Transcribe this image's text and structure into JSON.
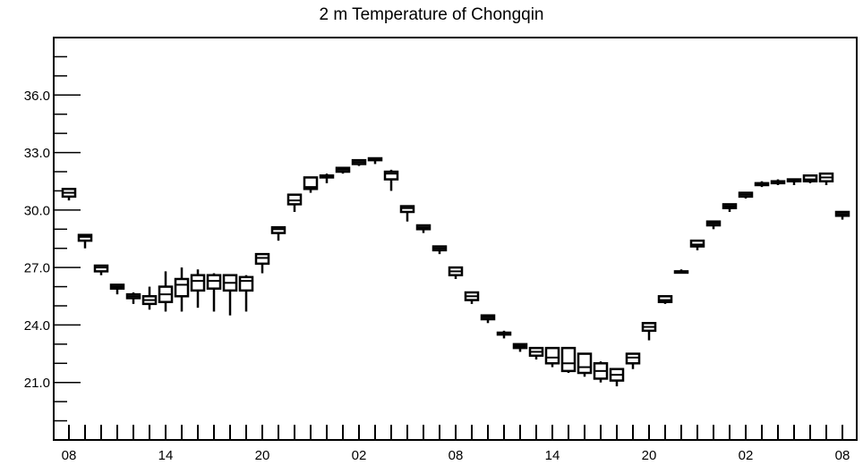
{
  "chart_data": {
    "type": "boxplot",
    "title": "2 m Temperature of Chongqin",
    "xlabel": "",
    "ylabel": "",
    "ylim": [
      18.0,
      39.0
    ],
    "yticks": [
      21.0,
      24.0,
      27.0,
      30.0,
      33.0,
      36.0
    ],
    "ytick_labels": [
      "21.0",
      "24.0",
      "27.0",
      "30.0",
      "33.0",
      "36.0"
    ],
    "xlim": [
      0,
      48
    ],
    "xtick_labels": [
      {
        "x": 0,
        "label": "08"
      },
      {
        "x": 6,
        "label": "14"
      },
      {
        "x": 12,
        "label": "20"
      },
      {
        "x": 18,
        "label": "02"
      },
      {
        "x": 24,
        "label": "08"
      },
      {
        "x": 30,
        "label": "14"
      },
      {
        "x": 36,
        "label": "20"
      },
      {
        "x": 42,
        "label": "02"
      },
      {
        "x": 48,
        "label": "08"
      }
    ],
    "grid": false,
    "boxes": [
      {
        "x": 0,
        "min": 30.5,
        "q1": 30.7,
        "median": 30.9,
        "q3": 31.1,
        "max": 31.1
      },
      {
        "x": 1,
        "min": 28.0,
        "q1": 28.4,
        "median": 28.6,
        "q3": 28.7,
        "max": 28.7
      },
      {
        "x": 2,
        "min": 26.6,
        "q1": 26.8,
        "median": 27.0,
        "q3": 27.1,
        "max": 27.1
      },
      {
        "x": 3,
        "min": 25.6,
        "q1": 25.9,
        "median": 26.0,
        "q3": 26.1,
        "max": 26.1
      },
      {
        "x": 4,
        "min": 25.1,
        "q1": 25.4,
        "median": 25.5,
        "q3": 25.6,
        "max": 25.7
      },
      {
        "x": 5,
        "min": 24.8,
        "q1": 25.1,
        "median": 25.3,
        "q3": 25.5,
        "max": 26.0
      },
      {
        "x": 6,
        "min": 24.7,
        "q1": 25.2,
        "median": 25.6,
        "q3": 26.0,
        "max": 26.8
      },
      {
        "x": 7,
        "min": 24.7,
        "q1": 25.5,
        "median": 26.1,
        "q3": 26.4,
        "max": 27.0
      },
      {
        "x": 8,
        "min": 24.9,
        "q1": 25.8,
        "median": 26.3,
        "q3": 26.6,
        "max": 26.9
      },
      {
        "x": 9,
        "min": 24.7,
        "q1": 25.9,
        "median": 26.3,
        "q3": 26.6,
        "max": 26.7
      },
      {
        "x": 10,
        "min": 24.5,
        "q1": 25.8,
        "median": 26.2,
        "q3": 26.6,
        "max": 26.6
      },
      {
        "x": 11,
        "min": 24.7,
        "q1": 25.8,
        "median": 26.3,
        "q3": 26.5,
        "max": 26.6
      },
      {
        "x": 12,
        "min": 26.7,
        "q1": 27.2,
        "median": 27.5,
        "q3": 27.7,
        "max": 27.7
      },
      {
        "x": 13,
        "min": 28.4,
        "q1": 28.8,
        "median": 29.0,
        "q3": 29.1,
        "max": 29.1
      },
      {
        "x": 14,
        "min": 29.9,
        "q1": 30.3,
        "median": 30.5,
        "q3": 30.8,
        "max": 30.8
      },
      {
        "x": 15,
        "min": 30.9,
        "q1": 31.1,
        "median": 31.2,
        "q3": 31.7,
        "max": 31.7
      },
      {
        "x": 16,
        "min": 31.4,
        "q1": 31.7,
        "median": 31.8,
        "q3": 31.8,
        "max": 31.9
      },
      {
        "x": 17,
        "min": 31.9,
        "q1": 32.0,
        "median": 32.1,
        "q3": 32.2,
        "max": 32.2
      },
      {
        "x": 18,
        "min": 32.3,
        "q1": 32.4,
        "median": 32.5,
        "q3": 32.6,
        "max": 32.6
      },
      {
        "x": 19,
        "min": 32.4,
        "q1": 32.6,
        "median": 32.7,
        "q3": 32.7,
        "max": 32.7
      },
      {
        "x": 20,
        "min": 31.0,
        "q1": 31.6,
        "median": 31.9,
        "q3": 32.0,
        "max": 32.1
      },
      {
        "x": 21,
        "min": 29.4,
        "q1": 29.9,
        "median": 30.1,
        "q3": 30.2,
        "max": 30.2
      },
      {
        "x": 22,
        "min": 28.8,
        "q1": 29.0,
        "median": 29.1,
        "q3": 29.2,
        "max": 29.2
      },
      {
        "x": 23,
        "min": 27.7,
        "q1": 27.9,
        "median": 28.0,
        "q3": 28.1,
        "max": 28.1
      },
      {
        "x": 24,
        "min": 26.4,
        "q1": 26.6,
        "median": 26.8,
        "q3": 27.0,
        "max": 27.0
      },
      {
        "x": 25,
        "min": 25.1,
        "q1": 25.3,
        "median": 25.5,
        "q3": 25.7,
        "max": 25.7
      },
      {
        "x": 26,
        "min": 24.1,
        "q1": 24.3,
        "median": 24.4,
        "q3": 24.5,
        "max": 24.5
      },
      {
        "x": 27,
        "min": 23.3,
        "q1": 23.5,
        "median": 23.6,
        "q3": 23.6,
        "max": 23.7
      },
      {
        "x": 28,
        "min": 22.6,
        "q1": 22.8,
        "median": 22.9,
        "q3": 23.0,
        "max": 23.0
      },
      {
        "x": 29,
        "min": 22.2,
        "q1": 22.4,
        "median": 22.6,
        "q3": 22.8,
        "max": 22.8
      },
      {
        "x": 30,
        "min": 21.8,
        "q1": 22.0,
        "median": 22.3,
        "q3": 22.8,
        "max": 22.8
      },
      {
        "x": 31,
        "min": 21.5,
        "q1": 21.6,
        "median": 22.0,
        "q3": 22.8,
        "max": 22.8
      },
      {
        "x": 32,
        "min": 21.3,
        "q1": 21.5,
        "median": 21.8,
        "q3": 22.5,
        "max": 22.5
      },
      {
        "x": 33,
        "min": 21.0,
        "q1": 21.2,
        "median": 21.6,
        "q3": 22.0,
        "max": 22.1
      },
      {
        "x": 34,
        "min": 20.8,
        "q1": 21.1,
        "median": 21.4,
        "q3": 21.7,
        "max": 21.7
      },
      {
        "x": 35,
        "min": 21.7,
        "q1": 22.0,
        "median": 22.3,
        "q3": 22.5,
        "max": 22.5
      },
      {
        "x": 36,
        "min": 23.2,
        "q1": 23.7,
        "median": 23.9,
        "q3": 24.1,
        "max": 24.1
      },
      {
        "x": 37,
        "min": 25.1,
        "q1": 25.2,
        "median": 25.3,
        "q3": 25.5,
        "max": 25.5
      },
      {
        "x": 38,
        "min": 26.7,
        "q1": 26.8,
        "median": 26.8,
        "q3": 26.8,
        "max": 26.9
      },
      {
        "x": 39,
        "min": 27.9,
        "q1": 28.1,
        "median": 28.2,
        "q3": 28.4,
        "max": 28.4
      },
      {
        "x": 40,
        "min": 29.0,
        "q1": 29.2,
        "median": 29.3,
        "q3": 29.4,
        "max": 29.4
      },
      {
        "x": 41,
        "min": 29.9,
        "q1": 30.1,
        "median": 30.2,
        "q3": 30.3,
        "max": 30.3
      },
      {
        "x": 42,
        "min": 30.6,
        "q1": 30.7,
        "median": 30.8,
        "q3": 30.9,
        "max": 30.9
      },
      {
        "x": 43,
        "min": 31.2,
        "q1": 31.3,
        "median": 31.4,
        "q3": 31.4,
        "max": 31.5
      },
      {
        "x": 44,
        "min": 31.3,
        "q1": 31.4,
        "median": 31.5,
        "q3": 31.5,
        "max": 31.6
      },
      {
        "x": 45,
        "min": 31.3,
        "q1": 31.5,
        "median": 31.5,
        "q3": 31.6,
        "max": 31.6
      },
      {
        "x": 46,
        "min": 31.4,
        "q1": 31.5,
        "median": 31.6,
        "q3": 31.8,
        "max": 31.8
      },
      {
        "x": 47,
        "min": 31.3,
        "q1": 31.5,
        "median": 31.7,
        "q3": 31.9,
        "max": 31.9
      },
      {
        "x": 48,
        "min": 29.5,
        "q1": 29.7,
        "median": 29.8,
        "q3": 29.9,
        "max": 29.9
      }
    ]
  }
}
